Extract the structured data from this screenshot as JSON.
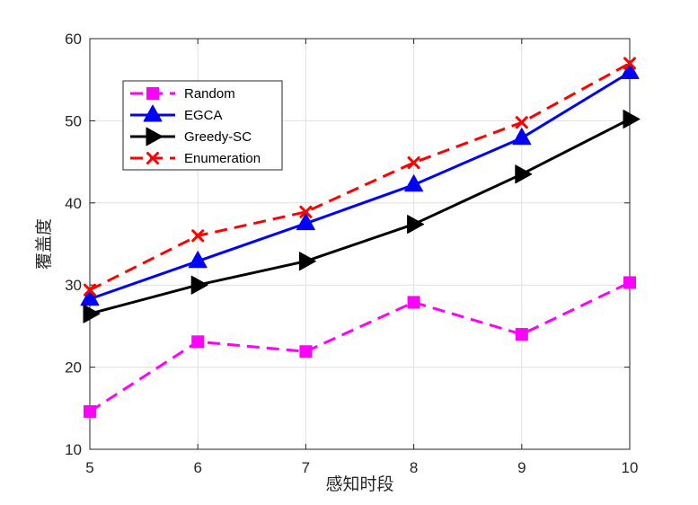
{
  "chart_data": {
    "type": "line",
    "title": "",
    "xlabel": "感知时段",
    "ylabel": "覆盖度",
    "x": [
      5,
      6,
      7,
      8,
      9,
      10
    ],
    "xlim": [
      5,
      10
    ],
    "ylim": [
      10,
      60
    ],
    "x_ticks": [
      "5",
      "6",
      "7",
      "8",
      "9",
      "10"
    ],
    "y_ticks": [
      "10",
      "20",
      "30",
      "40",
      "50",
      "60"
    ],
    "grid": true,
    "legend_position": "top-left",
    "series": [
      {
        "name": "Random",
        "values": [
          14.6,
          23.1,
          21.9,
          27.9,
          24.0,
          30.3
        ],
        "color": "#ff00ff",
        "line": "dashed",
        "marker": "square"
      },
      {
        "name": "EGCA",
        "values": [
          28.3,
          32.9,
          37.5,
          42.2,
          47.9,
          55.9
        ],
        "color": "#0000ff",
        "line": "solid",
        "marker": "triangle-up"
      },
      {
        "name": "Greedy-SC",
        "values": [
          26.5,
          30.0,
          32.9,
          37.4,
          43.5,
          50.2
        ],
        "color": "#000000",
        "line": "solid",
        "marker": "triangle-right"
      },
      {
        "name": "Enumeration",
        "values": [
          29.4,
          36.0,
          38.9,
          44.9,
          49.8,
          57.0
        ],
        "color": "#ff0000",
        "line": "dashed",
        "marker": "x"
      }
    ]
  }
}
